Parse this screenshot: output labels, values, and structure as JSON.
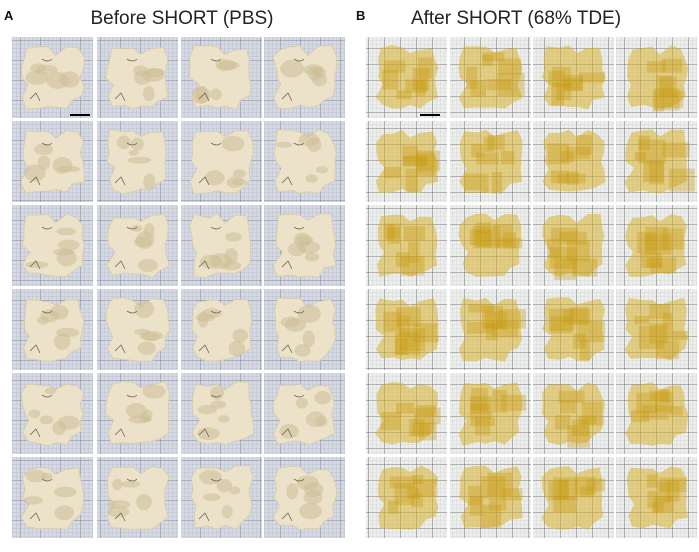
{
  "panels": [
    {
      "label": "A",
      "title": "Before SHORT (PBS)"
    },
    {
      "label": "B",
      "title": "After SHORT (68% TDE)"
    }
  ]
}
